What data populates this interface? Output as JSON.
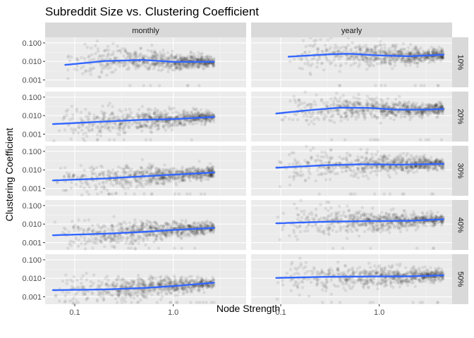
{
  "chart_data": {
    "type": "scatter",
    "title": "Subreddit Size vs. Clustering Coefficient",
    "xlabel": "Node Strength",
    "ylabel": "Clustering Coefficient",
    "x_scale": "log10",
    "y_scale": "log10",
    "xlim": [
      0.05,
      5.5
    ],
    "ylim": [
      0.0004,
      0.2
    ],
    "x_ticks": [
      0.1,
      1.0
    ],
    "x_tick_labels": [
      "0.1",
      "1.0"
    ],
    "y_ticks": [
      0.001,
      0.01,
      0.1
    ],
    "y_tick_labels": [
      "0.001",
      "0.010",
      "0.100"
    ],
    "grid": true,
    "point_color": "#000000",
    "point_alpha": 0.08,
    "smooth_color": "#3366ff",
    "panel_bg": "#ebebeb",
    "strip_bg": "#d9d9d9",
    "columns": [
      "monthly",
      "yearly"
    ],
    "rows": [
      "10%",
      "20%",
      "30%",
      "40%",
      "50%"
    ],
    "panels": [
      {
        "col": 0,
        "row": 0,
        "x_range": [
          0.08,
          2.6
        ],
        "clouds": [
          [
            0.12,
            0.014
          ],
          [
            0.5,
            0.013
          ],
          [
            1.5,
            0.01
          ],
          [
            2.4,
            0.009
          ]
        ],
        "smooth_x": [
          0.08,
          0.2,
          0.5,
          1.0,
          2.6
        ],
        "smooth_y": [
          0.0065,
          0.0105,
          0.012,
          0.0095,
          0.0095
        ]
      },
      {
        "col": 1,
        "row": 0,
        "x_range": [
          0.12,
          4.5
        ],
        "clouds": [
          [
            0.2,
            0.022
          ],
          [
            0.6,
            0.028
          ],
          [
            1.5,
            0.022
          ],
          [
            4.0,
            0.022
          ]
        ],
        "smooth_x": [
          0.12,
          0.3,
          0.5,
          1.0,
          2.0,
          4.5
        ],
        "smooth_y": [
          0.018,
          0.024,
          0.026,
          0.021,
          0.019,
          0.023
        ]
      },
      {
        "col": 0,
        "row": 1,
        "x_range": [
          0.06,
          2.6
        ],
        "clouds": [
          [
            0.12,
            0.006
          ],
          [
            0.5,
            0.007
          ],
          [
            1.5,
            0.007
          ],
          [
            2.4,
            0.009
          ]
        ],
        "smooth_x": [
          0.06,
          0.2,
          0.5,
          1.0,
          2.6
        ],
        "smooth_y": [
          0.0035,
          0.0048,
          0.006,
          0.0065,
          0.0085
        ]
      },
      {
        "col": 1,
        "row": 1,
        "x_range": [
          0.09,
          4.5
        ],
        "clouds": [
          [
            0.2,
            0.02
          ],
          [
            0.6,
            0.03
          ],
          [
            1.5,
            0.022
          ],
          [
            4.0,
            0.022
          ]
        ],
        "smooth_x": [
          0.09,
          0.2,
          0.4,
          0.8,
          1.5,
          3.0,
          4.5
        ],
        "smooth_y": [
          0.013,
          0.02,
          0.027,
          0.026,
          0.021,
          0.021,
          0.023
        ]
      },
      {
        "col": 0,
        "row": 2,
        "x_range": [
          0.06,
          2.6
        ],
        "clouds": [
          [
            0.12,
            0.003
          ],
          [
            0.5,
            0.005
          ],
          [
            1.5,
            0.006
          ],
          [
            2.4,
            0.007
          ]
        ],
        "smooth_x": [
          0.06,
          0.2,
          0.5,
          1.0,
          2.6
        ],
        "smooth_y": [
          0.0027,
          0.0034,
          0.0045,
          0.0055,
          0.0072
        ]
      },
      {
        "col": 1,
        "row": 2,
        "x_range": [
          0.09,
          4.5
        ],
        "clouds": [
          [
            0.2,
            0.016
          ],
          [
            0.6,
            0.022
          ],
          [
            1.5,
            0.019
          ],
          [
            4.0,
            0.02
          ]
        ],
        "smooth_x": [
          0.09,
          0.3,
          0.7,
          1.5,
          4.5
        ],
        "smooth_y": [
          0.013,
          0.018,
          0.02,
          0.019,
          0.021
        ]
      },
      {
        "col": 0,
        "row": 3,
        "x_range": [
          0.06,
          2.6
        ],
        "clouds": [
          [
            0.12,
            0.003
          ],
          [
            0.5,
            0.004
          ],
          [
            1.5,
            0.005
          ],
          [
            2.4,
            0.006
          ]
        ],
        "smooth_x": [
          0.06,
          0.2,
          0.5,
          1.0,
          2.6
        ],
        "smooth_y": [
          0.0025,
          0.003,
          0.0038,
          0.0048,
          0.0062
        ]
      },
      {
        "col": 1,
        "row": 3,
        "x_range": [
          0.09,
          4.5
        ],
        "clouds": [
          [
            0.2,
            0.012
          ],
          [
            0.6,
            0.017
          ],
          [
            1.5,
            0.016
          ],
          [
            4.0,
            0.018
          ]
        ],
        "smooth_x": [
          0.09,
          0.3,
          0.8,
          2.0,
          4.5
        ],
        "smooth_y": [
          0.011,
          0.0135,
          0.0145,
          0.015,
          0.018
        ]
      },
      {
        "col": 0,
        "row": 4,
        "x_range": [
          0.06,
          2.6
        ],
        "clouds": [
          [
            0.12,
            0.0025
          ],
          [
            0.5,
            0.003
          ],
          [
            1.5,
            0.004
          ],
          [
            2.4,
            0.006
          ]
        ],
        "smooth_x": [
          0.06,
          0.2,
          0.5,
          1.0,
          2.6
        ],
        "smooth_y": [
          0.0023,
          0.0025,
          0.003,
          0.0038,
          0.0058
        ]
      },
      {
        "col": 1,
        "row": 4,
        "x_range": [
          0.09,
          4.5
        ],
        "clouds": [
          [
            0.2,
            0.011
          ],
          [
            0.6,
            0.013
          ],
          [
            1.5,
            0.013
          ],
          [
            4.0,
            0.015
          ]
        ],
        "smooth_x": [
          0.09,
          0.3,
          0.8,
          2.0,
          4.5
        ],
        "smooth_y": [
          0.0105,
          0.012,
          0.0125,
          0.0128,
          0.0145
        ]
      }
    ]
  }
}
